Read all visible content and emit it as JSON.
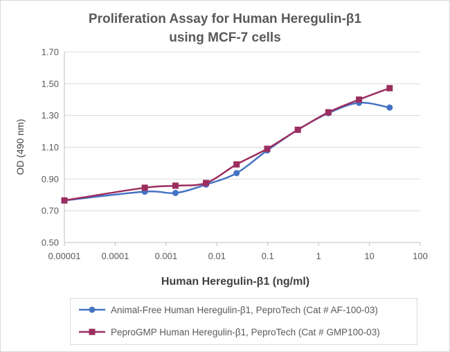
{
  "chart_data": {
    "type": "line",
    "title_lines": [
      "Proliferation Assay for Human Heregulin-β1",
      "using MCF-7 cells"
    ],
    "xlabel": "Human Heregulin-β1 (ng/ml)",
    "ylabel": "OD (490 nm)",
    "xscale": "log",
    "xlim": [
      1e-05,
      100
    ],
    "ylim": [
      0.5,
      1.7
    ],
    "xticks": [
      "0.00001",
      "0.0001",
      "0.001",
      "0.01",
      "0.1",
      "1",
      "10",
      "100"
    ],
    "xtick_values": [
      1e-05,
      0.0001,
      0.001,
      0.01,
      0.1,
      1,
      10,
      100
    ],
    "yticks": [
      "0.50",
      "0.70",
      "0.90",
      "1.10",
      "1.30",
      "1.50",
      "1.70"
    ],
    "ytick_values": [
      0.5,
      0.7,
      0.9,
      1.1,
      1.3,
      1.5,
      1.7
    ],
    "legend_position": "bottom",
    "series": [
      {
        "name": "Animal-Free Human Heregulin-β1, PeproTech (Cat # AF-100-03)",
        "color": "#4472c4",
        "marker": "circle",
        "x": [
          1e-05,
          0.000381,
          0.00153,
          0.0061,
          0.0244,
          0.0977,
          0.391,
          1.56,
          6.25,
          25
        ],
        "y": [
          0.765,
          0.82,
          0.812,
          0.865,
          0.937,
          1.08,
          1.21,
          1.315,
          1.38,
          1.35
        ]
      },
      {
        "name": "PeproGMP Human Heregulin-β1, PeproTech (Cat # GMP100-03)",
        "color": "#9b2d5f",
        "marker": "square",
        "x": [
          1e-05,
          0.000381,
          0.00153,
          0.0061,
          0.0244,
          0.0977,
          0.391,
          1.56,
          6.25,
          25
        ],
        "y": [
          0.765,
          0.845,
          0.858,
          0.875,
          0.992,
          1.09,
          1.21,
          1.32,
          1.4,
          1.472
        ]
      }
    ]
  }
}
